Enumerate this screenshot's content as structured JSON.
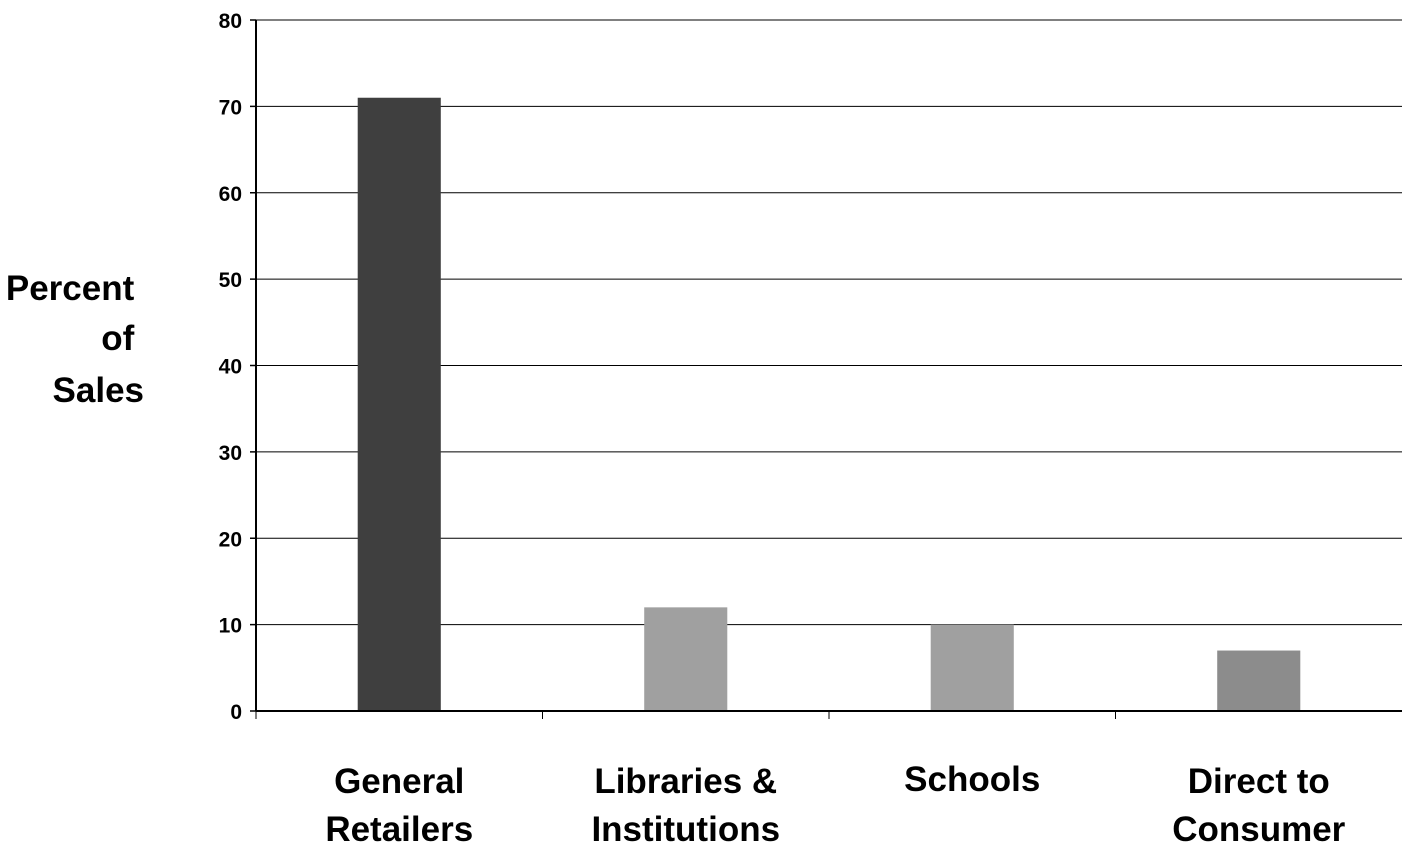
{
  "chart_data": {
    "type": "bar",
    "title": "",
    "ylabel_lines": [
      "Percent",
      "of",
      "Sales"
    ],
    "categories": [
      [
        "General",
        "Retailers"
      ],
      [
        "Libraries &",
        "Institutions"
      ],
      [
        "Schools"
      ],
      [
        "Direct to",
        "Consumer"
      ]
    ],
    "values": [
      71,
      12,
      10,
      7
    ],
    "bar_colors": [
      "#3f3f3f",
      "#a0a0a0",
      "#a0a0a0",
      "#8c8c8c"
    ],
    "ylim": [
      0,
      80
    ],
    "yticks": [
      0,
      10,
      20,
      30,
      40,
      50,
      60,
      70,
      80
    ],
    "grid": true,
    "legend": "none"
  }
}
